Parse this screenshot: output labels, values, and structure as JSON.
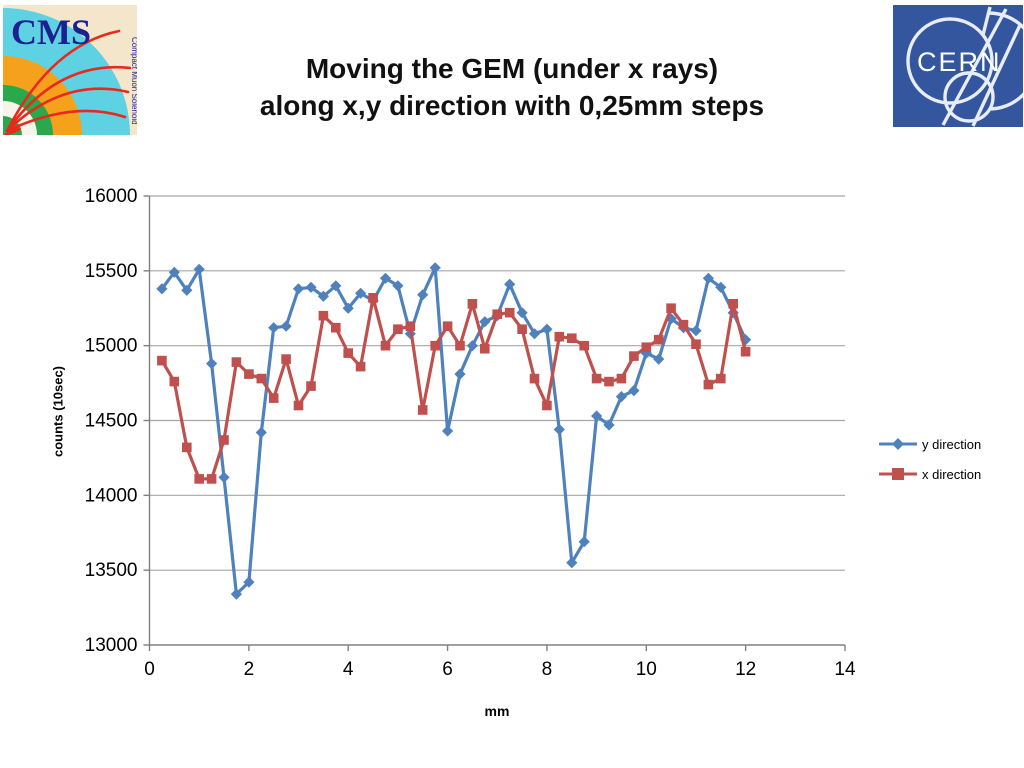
{
  "slide": {
    "title_line1": "Moving the GEM (under x rays)",
    "title_line2": "along x,y direction with 0,25mm steps"
  },
  "logos": {
    "cms": {
      "text": "CMS",
      "subtext": "Compact Muon Solenoid"
    },
    "cern": {
      "text": "CERN"
    }
  },
  "chart_data": {
    "type": "line",
    "title": "",
    "xlabel": "mm",
    "ylabel": "counts (10sec)",
    "xlim": [
      0,
      14
    ],
    "ylim": [
      13000,
      16000
    ],
    "x_ticks": [
      0,
      2,
      4,
      6,
      8,
      10,
      12,
      14
    ],
    "y_ticks": [
      16000,
      15500,
      15000,
      14500,
      14000,
      13500,
      13000
    ],
    "grid": "horizontal-only",
    "legend_position": "right",
    "colors": {
      "gridline": "#a6a6a6",
      "axis": "#808080",
      "series_y": "#4F81BD",
      "series_x": "#C0504D"
    },
    "x_step_mm": 0.25,
    "x": [
      0.25,
      0.5,
      0.75,
      1.0,
      1.25,
      1.5,
      1.75,
      2.0,
      2.25,
      2.5,
      2.75,
      3.0,
      3.25,
      3.5,
      3.75,
      4.0,
      4.25,
      4.5,
      4.75,
      5.0,
      5.25,
      5.5,
      5.75,
      6.0,
      6.25,
      6.5,
      6.75,
      7.0,
      7.25,
      7.5,
      7.75,
      8.0,
      8.25,
      8.5,
      8.75,
      9.0,
      9.25,
      9.5,
      9.75,
      10.0,
      10.25,
      10.5,
      10.75,
      11.0,
      11.25,
      11.5,
      11.75,
      12.0
    ],
    "series": [
      {
        "name": "y direction",
        "color": "#4F81BD",
        "marker": "diamond",
        "values": [
          15380,
          15490,
          15370,
          15510,
          14880,
          14120,
          13340,
          13420,
          14420,
          15120,
          15130,
          15380,
          15390,
          15330,
          15400,
          15250,
          15350,
          15300,
          15450,
          15400,
          15080,
          15340,
          15520,
          14430,
          14810,
          15000,
          15160,
          15200,
          15410,
          15220,
          15080,
          15110,
          14440,
          13550,
          13690,
          14530,
          14470,
          14660,
          14700,
          14950,
          14910,
          15180,
          15120,
          15100,
          15450,
          15390,
          15220,
          15040
        ]
      },
      {
        "name": "x direction",
        "color": "#C0504D",
        "marker": "square",
        "values": [
          14900,
          14760,
          14320,
          14110,
          14110,
          14370,
          14890,
          14810,
          14780,
          14650,
          14910,
          14600,
          14730,
          15200,
          15120,
          14950,
          14860,
          15320,
          15000,
          15110,
          15130,
          14570,
          15000,
          15130,
          15000,
          15280,
          14980,
          15210,
          15220,
          15110,
          14780,
          14600,
          15060,
          15050,
          15000,
          14780,
          14760,
          14780,
          14930,
          14990,
          15040,
          15250,
          15140,
          15010,
          14740,
          14780,
          15280,
          14960
        ]
      }
    ]
  }
}
